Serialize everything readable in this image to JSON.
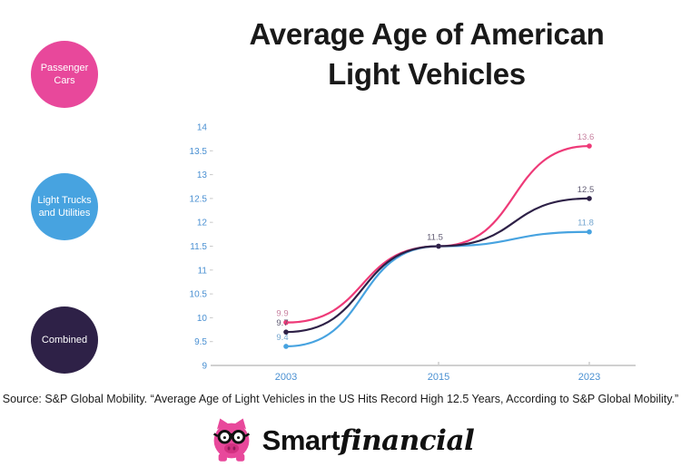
{
  "title": {
    "line1": "Average Age of American",
    "line2": "Light Vehicles"
  },
  "legend": [
    {
      "label": "Passenger Cars",
      "color": "#e8489b",
      "text_color": "#ffffff"
    },
    {
      "label": "Light Trucks and Utilities",
      "color": "#47a3e0",
      "text_color": "#ffffff"
    },
    {
      "label": "Combined",
      "color": "#2e2147",
      "text_color": "#ffffff"
    }
  ],
  "chart_data": {
    "type": "line",
    "title": "Average Age of American Light Vehicles",
    "x": [
      2003,
      2015,
      2023
    ],
    "x_tick_labels": [
      "2003",
      "2015",
      "2023"
    ],
    "xlabel": "",
    "ylabel": "",
    "ylim": [
      9,
      14
    ],
    "yticks": [
      9,
      9.5,
      10,
      10.5,
      11,
      11.5,
      12,
      12.5,
      13,
      13.5,
      14
    ],
    "grid": false,
    "legend_position": "left",
    "axis_label_color": "#4a90d2",
    "axis_line_color": "#b3b3b3",
    "tick_dash_color": "#c9c9c9",
    "series": [
      {
        "name": "Passenger Cars",
        "color": "#ee3a78",
        "values": [
          9.9,
          11.5,
          13.6
        ],
        "point_labels": [
          "9.9",
          null,
          "13.6"
        ],
        "label_color": "#c7809f"
      },
      {
        "name": "Light Trucks and Utilities",
        "color": "#47a3e0",
        "values": [
          9.4,
          11.5,
          11.8
        ],
        "point_labels": [
          "9.4",
          null,
          "11.8"
        ],
        "label_color": "#73a5cf"
      },
      {
        "name": "Combined",
        "color": "#2e2147",
        "values": [
          9.7,
          11.5,
          12.5
        ],
        "point_labels": [
          "9.7",
          "11.5",
          "12.5"
        ],
        "label_color": "#5f5a72"
      }
    ]
  },
  "source": "Source: S&P Global Mobility. “Average Age of Light Vehicles in the US Hits Record High 12.5 Years, According to S&P Global Mobility.”",
  "logo": {
    "brand_bold": "Smart",
    "brand_script": "financial",
    "icon": "piggy-bank-icon",
    "pig_color": "#e8489b",
    "pig_snout_color": "#d23181",
    "pig_nostril_color": "#8f1d59"
  }
}
